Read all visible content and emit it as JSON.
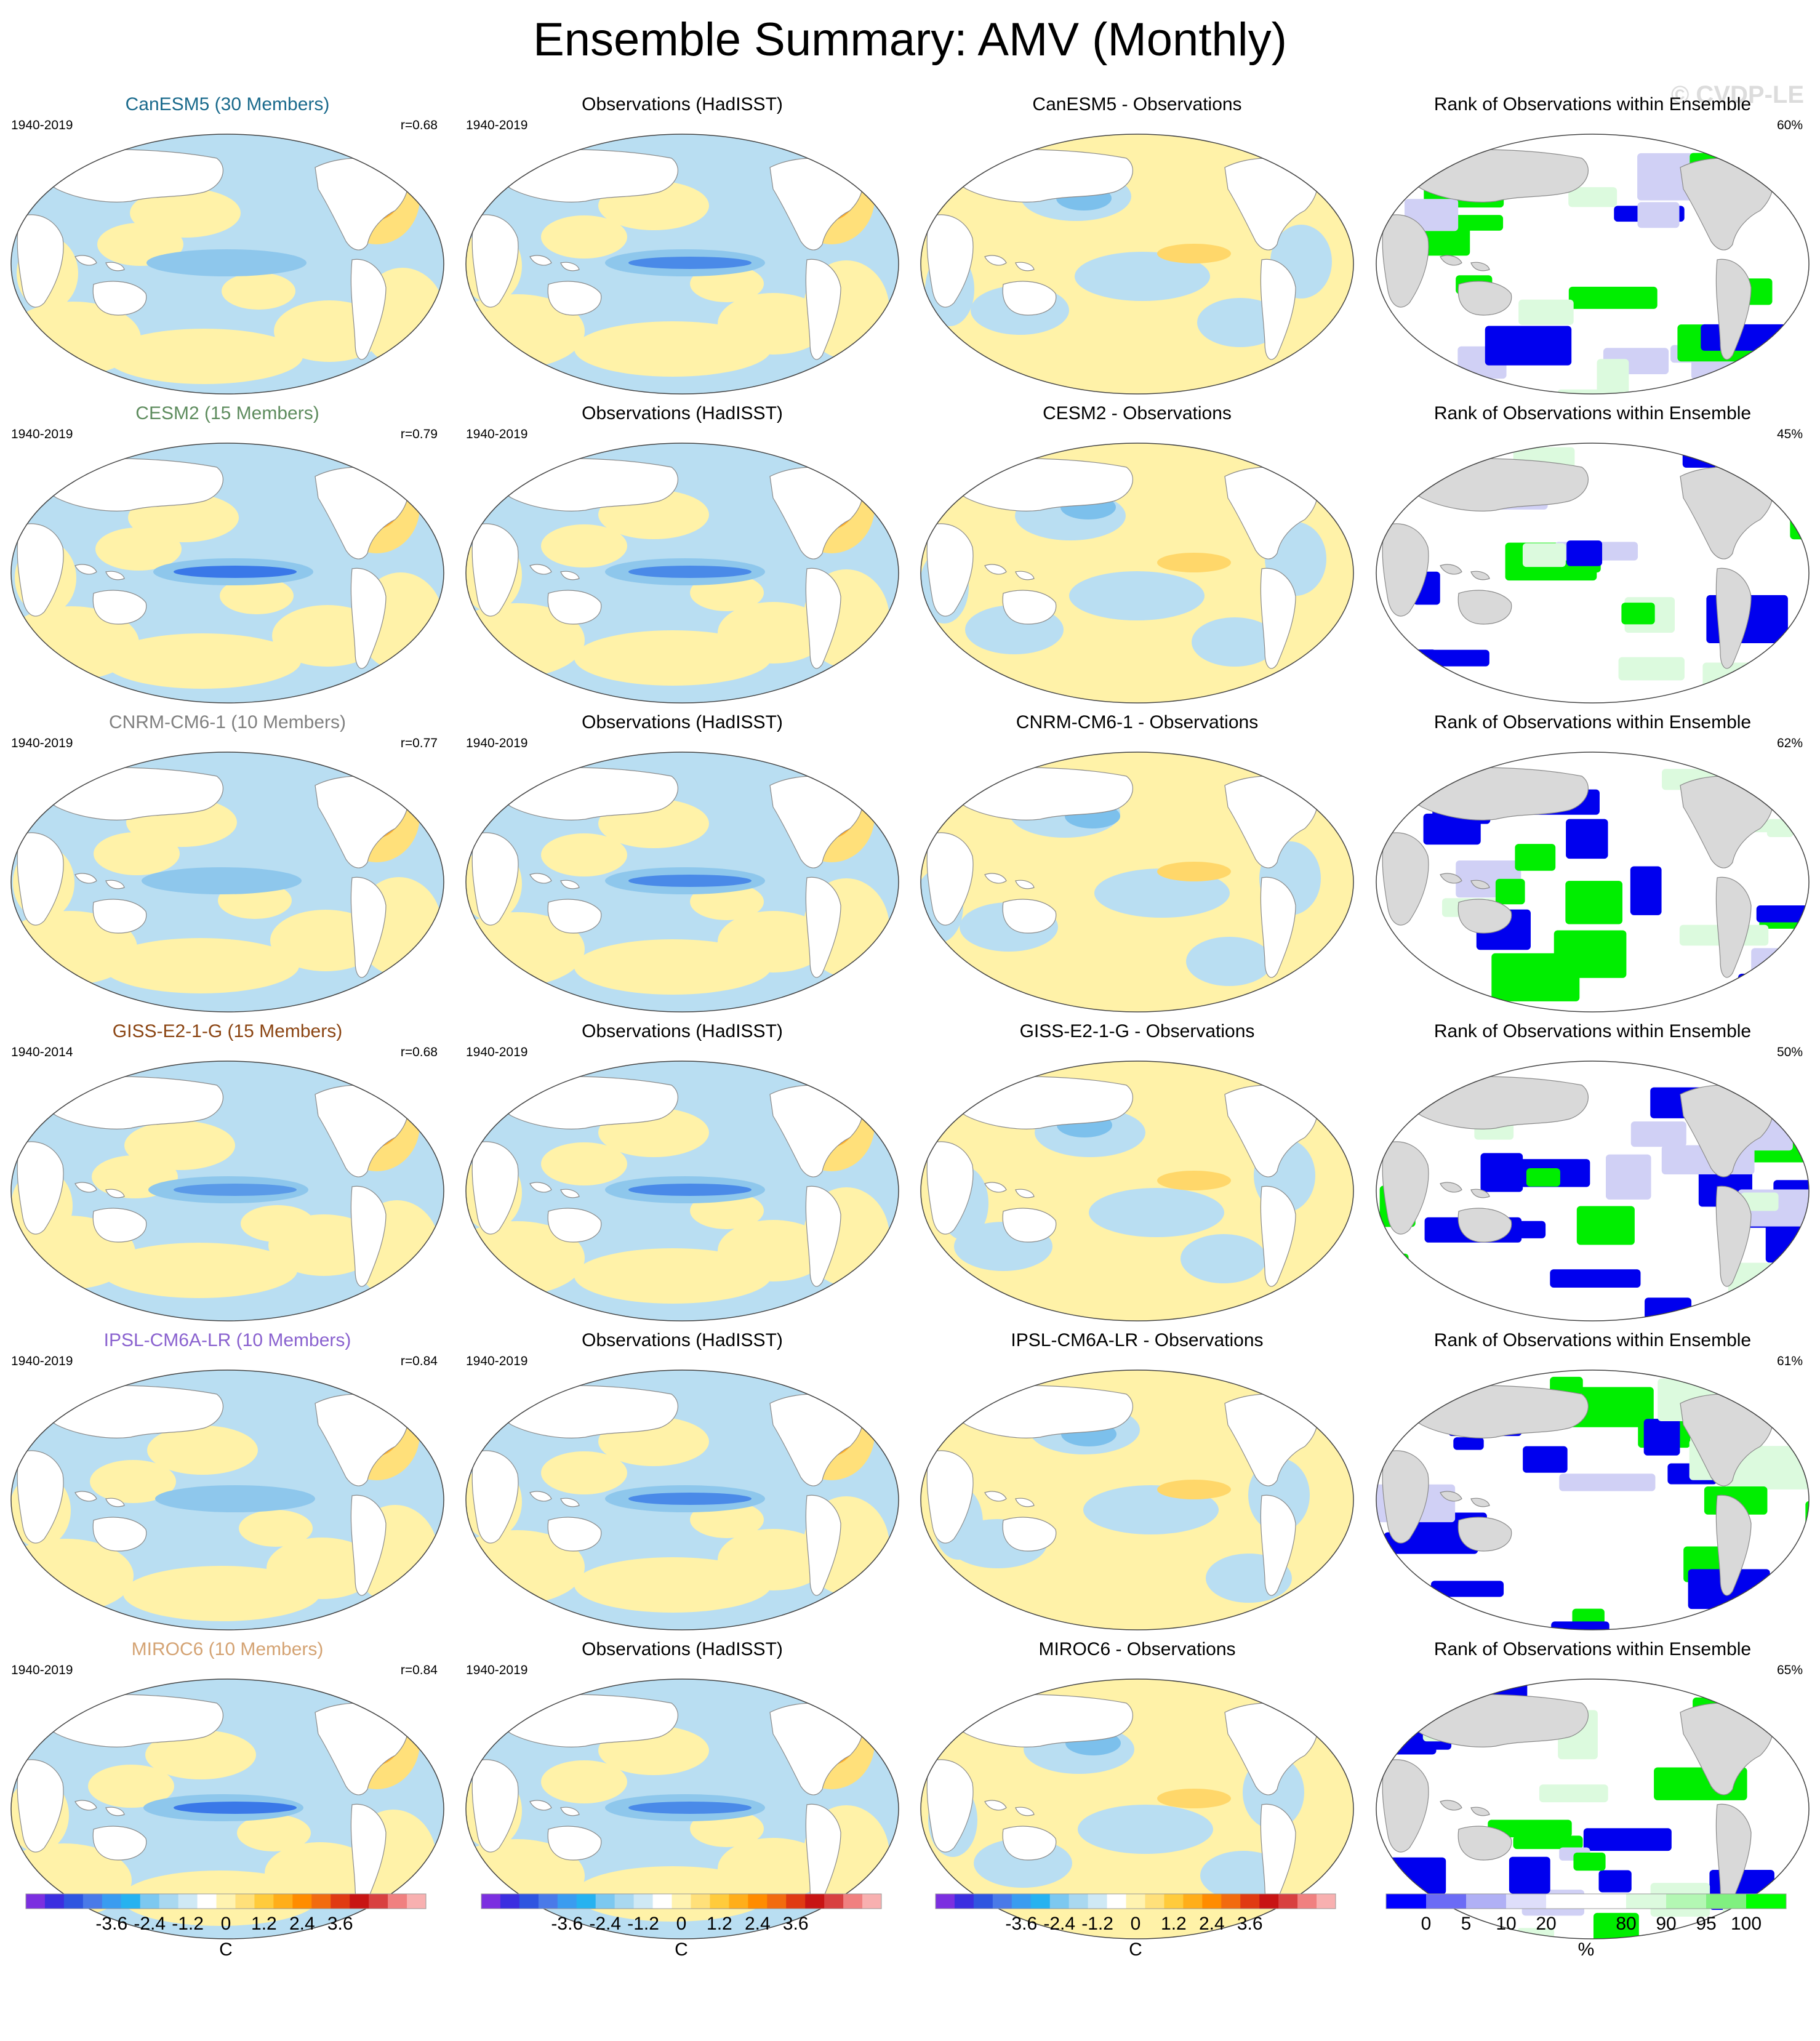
{
  "title": "Ensemble Summary: AMV (Monthly)",
  "watermark": "© CVDP-LE",
  "rows": [
    {
      "model_title": "CanESM5 (30 Members)",
      "model_color": "#1a6a8c",
      "model_period": "1940-2019",
      "r": "r=0.68",
      "obs_title": "Observations (HadISST)",
      "obs_period": "1940-2019",
      "diff_title": "CanESM5 - Observations",
      "rank_title": "Rank of Observations within Ensemble",
      "rank_pct": "60%"
    },
    {
      "model_title": "CESM2 (15 Members)",
      "model_color": "#5e8c5e",
      "model_period": "1940-2019",
      "r": "r=0.79",
      "obs_title": "Observations (HadISST)",
      "obs_period": "1940-2019",
      "diff_title": "CESM2 - Observations",
      "rank_title": "Rank of Observations within Ensemble",
      "rank_pct": "45%"
    },
    {
      "model_title": "CNRM-CM6-1 (10 Members)",
      "model_color": "#808080",
      "model_period": "1940-2019",
      "r": "r=0.77",
      "obs_title": "Observations (HadISST)",
      "obs_period": "1940-2019",
      "diff_title": "CNRM-CM6-1 - Observations",
      "rank_title": "Rank of Observations within Ensemble",
      "rank_pct": "62%"
    },
    {
      "model_title": "GISS-E2-1-G (15 Members)",
      "model_color": "#8b4513",
      "model_period": "1940-2014",
      "r": "r=0.68",
      "obs_title": "Observations (HadISST)",
      "obs_period": "1940-2019",
      "diff_title": "GISS-E2-1-G - Observations",
      "rank_title": "Rank of Observations within Ensemble",
      "rank_pct": "50%"
    },
    {
      "model_title": "IPSL-CM6A-LR (10 Members)",
      "model_color": "#8a62cf",
      "model_period": "1940-2019",
      "r": "r=0.84",
      "obs_title": "Observations (HadISST)",
      "obs_period": "1940-2019",
      "diff_title": "IPSL-CM6A-LR - Observations",
      "rank_title": "Rank of Observations within Ensemble",
      "rank_pct": "61%"
    },
    {
      "model_title": "MIROC6 (10 Members)",
      "model_color": "#d4a373",
      "model_period": "1940-2019",
      "r": "r=0.84",
      "obs_title": "Observations (HadISST)",
      "obs_period": "1940-2019",
      "diff_title": "MIROC6 - Observations",
      "rank_title": "Rank of Observations within Ensemble",
      "rank_pct": "65%"
    }
  ],
  "temp_colorbar": {
    "ticks": [
      "-3.6",
      "-2.4",
      "-1.2",
      "0",
      "1.2",
      "2.4",
      "3.6"
    ],
    "unit": "C",
    "colors": [
      "#7b2fe0",
      "#3b2ee0",
      "#2f55e0",
      "#4a7ae8",
      "#3a9cf0",
      "#26b2f0",
      "#7cc8f0",
      "#a9d8f0",
      "#cfe9f5",
      "#ffffff",
      "#fff3b0",
      "#ffe07a",
      "#ffcb3c",
      "#ffae1a",
      "#ff8c00",
      "#f26b0f",
      "#e03a12",
      "#c81414",
      "#d84040",
      "#f08080",
      "#f8b0b0"
    ]
  },
  "rank_colorbar": {
    "ticks": [
      "0",
      "5",
      "10",
      "20",
      "80",
      "90",
      "95",
      "100"
    ],
    "unit": "%",
    "colors": [
      "#0000ff",
      "#6b6bf5",
      "#b0b0f5",
      "#dedefa",
      "#ffffff",
      "#ffffff",
      "#dcfade",
      "#b3f7b3",
      "#80f080",
      "#00ff00"
    ]
  }
}
